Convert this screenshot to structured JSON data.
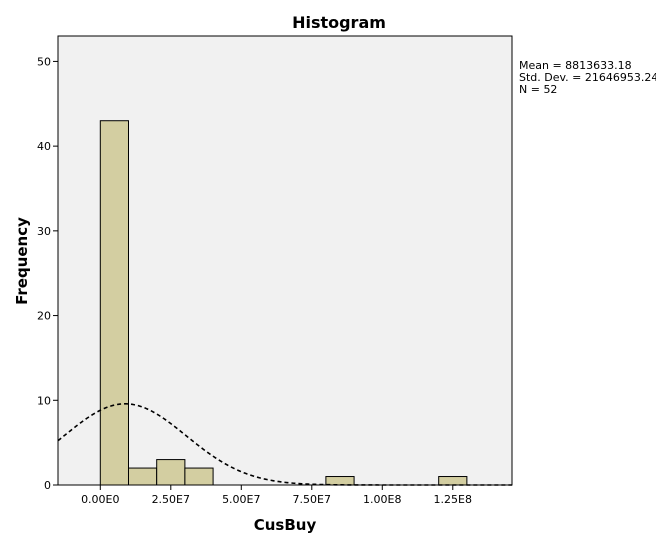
{
  "chart_data": {
    "type": "bar",
    "title": "Histogram",
    "xlabel": "CusBuy",
    "ylabel": "Frequency",
    "bin_width": 10000000,
    "bins": [
      {
        "start": 0,
        "end": 10000000,
        "count": 43
      },
      {
        "start": 10000000,
        "end": 20000000,
        "count": 2
      },
      {
        "start": 20000000,
        "end": 30000000,
        "count": 3
      },
      {
        "start": 30000000,
        "end": 40000000,
        "count": 2
      },
      {
        "start": 80000000,
        "end": 90000000,
        "count": 1
      },
      {
        "start": 120000000,
        "end": 130000000,
        "count": 1
      }
    ],
    "xlim": [
      -15000000,
      146000000
    ],
    "ylim": [
      0,
      53
    ],
    "x_ticks": [
      {
        "value": 0,
        "label": "0.00E0"
      },
      {
        "value": 25000000,
        "label": "2.50E7"
      },
      {
        "value": 50000000,
        "label": "5.00E7"
      },
      {
        "value": 75000000,
        "label": "7.50E7"
      },
      {
        "value": 100000000,
        "label": "1.00E8"
      },
      {
        "value": 125000000,
        "label": "1.25E8"
      }
    ],
    "y_ticks": [
      {
        "value": 0,
        "label": "0"
      },
      {
        "value": 10,
        "label": "10"
      },
      {
        "value": 20,
        "label": "20"
      },
      {
        "value": 30,
        "label": "30"
      },
      {
        "value": 40,
        "label": "40"
      },
      {
        "value": 50,
        "label": "50"
      }
    ],
    "normal_curve": {
      "mean": 8813633.18,
      "sd": 21646953.24,
      "n": 52,
      "bin_width": 10000000
    },
    "stats": {
      "mean": "Mean = 8813633.18",
      "sd": "Std. Dev. = 21646953.24",
      "n": "N = 52"
    },
    "grid": false,
    "legend": "none",
    "colors": {
      "bar_fill": "#d3cea1",
      "bar_stroke": "#000000",
      "plot_bg": "#f1f1f1",
      "curve": "#000000"
    }
  }
}
